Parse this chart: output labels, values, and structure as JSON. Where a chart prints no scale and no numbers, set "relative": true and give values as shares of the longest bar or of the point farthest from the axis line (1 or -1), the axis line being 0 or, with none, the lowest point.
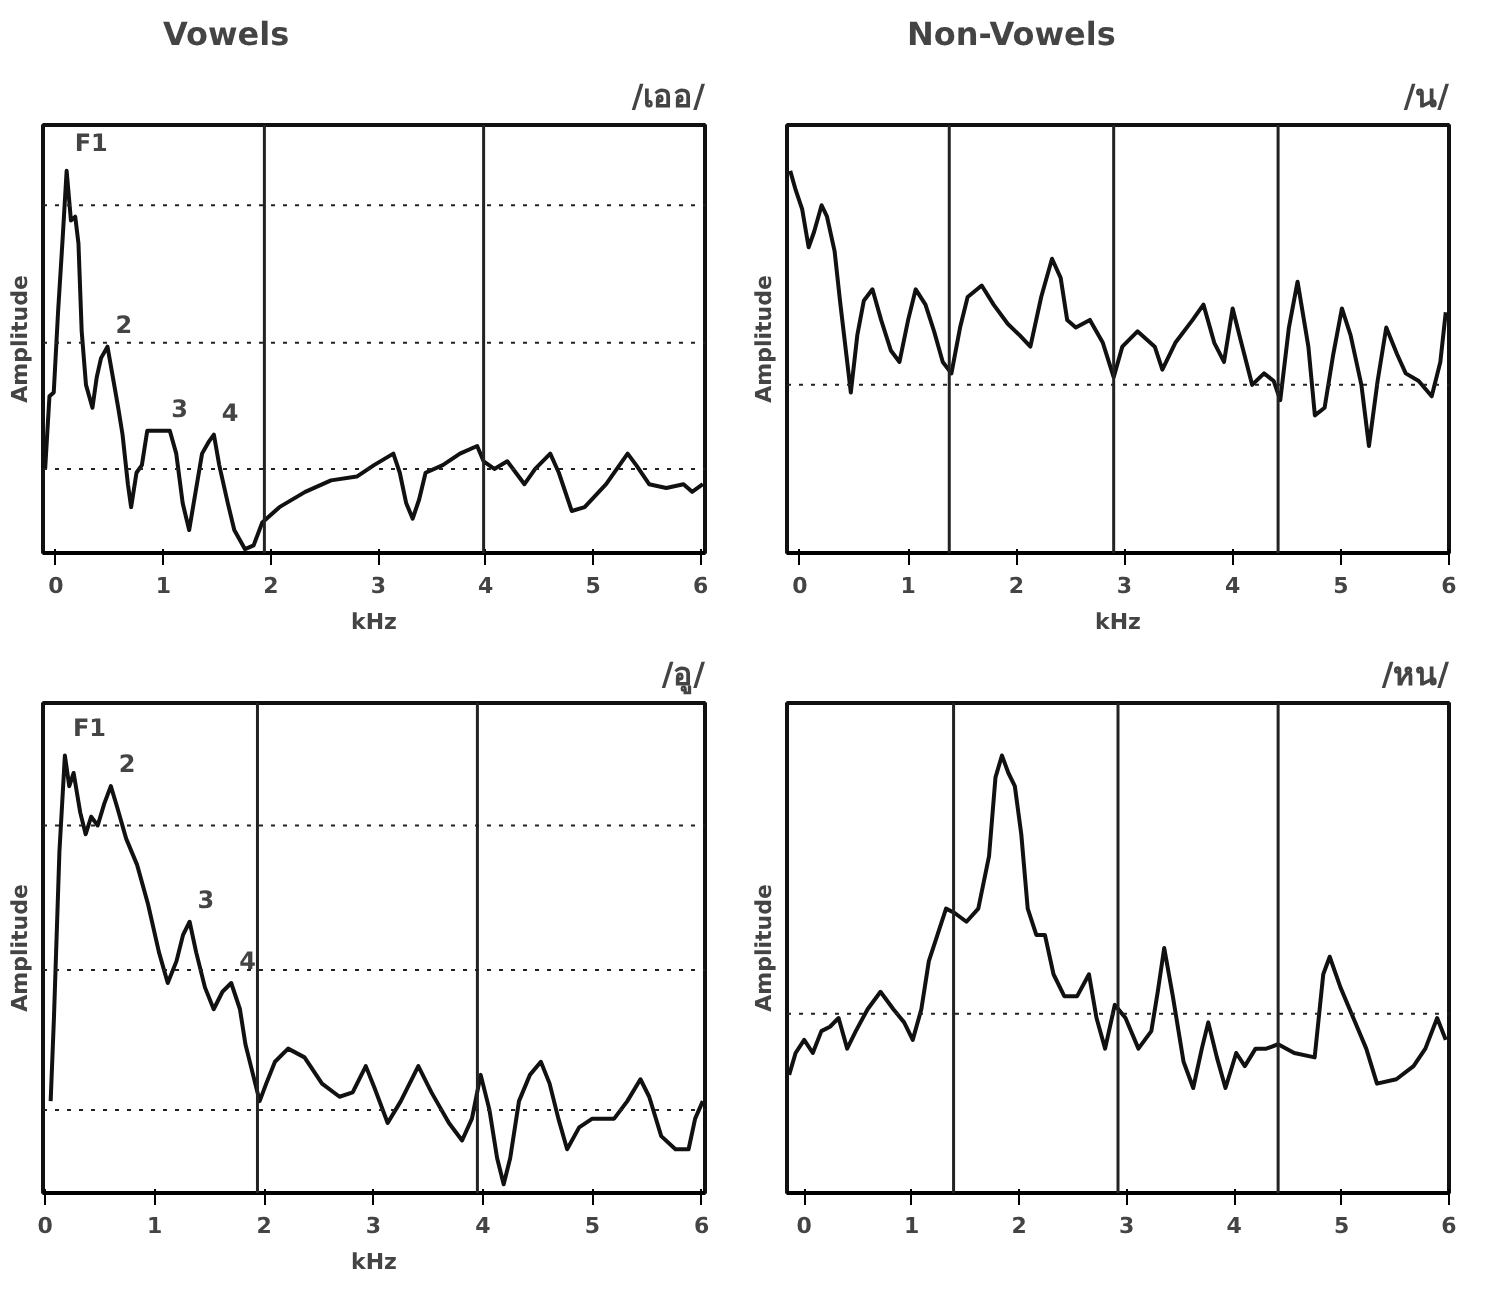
{
  "chart_data": [
    {
      "type": "line",
      "title": "/เออ/",
      "subtitle": "Vowels",
      "xlabel": "kHz",
      "ylabel": "Amplitude",
      "relative": true,
      "grid": false,
      "tick_labels": "x",
      "line_style": "solid",
      "color": "#111111",
      "xlim": [
        -0.12,
        6.04
      ],
      "xticks": [
        0,
        1,
        2,
        3,
        4,
        5,
        6
      ],
      "x": [
        -0.1,
        -0.06,
        -0.02,
        0.02,
        0.06,
        0.1,
        0.14,
        0.18,
        0.21,
        0.24,
        0.28,
        0.34,
        0.38,
        0.42,
        0.48,
        0.53,
        0.58,
        0.62,
        0.67,
        0.7,
        0.75,
        0.8,
        0.85,
        0.94,
        1.06,
        1.12,
        1.18,
        1.24,
        1.3,
        1.36,
        1.42,
        1.47,
        1.52,
        1.6,
        1.66,
        1.76,
        1.84,
        1.92,
        2.08,
        2.32,
        2.56,
        2.8,
        2.96,
        3.14,
        3.2,
        3.26,
        3.32,
        3.38,
        3.44,
        3.6,
        3.76,
        3.92,
        3.98,
        4.08,
        4.2,
        4.28,
        4.36,
        4.46,
        4.6,
        4.68,
        4.8,
        4.92,
        5.12,
        5.32,
        5.4,
        5.52,
        5.68,
        5.84,
        5.92,
        6.02
      ],
      "values": [
        0.22,
        0.41,
        0.42,
        0.63,
        0.81,
        1.0,
        0.87,
        0.88,
        0.81,
        0.58,
        0.44,
        0.38,
        0.46,
        0.51,
        0.54,
        0.46,
        0.38,
        0.31,
        0.18,
        0.12,
        0.21,
        0.23,
        0.32,
        0.32,
        0.32,
        0.26,
        0.13,
        0.06,
        0.16,
        0.26,
        0.29,
        0.31,
        0.23,
        0.13,
        0.06,
        0.01,
        0.02,
        0.08,
        0.12,
        0.16,
        0.19,
        0.2,
        0.23,
        0.26,
        0.21,
        0.13,
        0.09,
        0.14,
        0.21,
        0.23,
        0.26,
        0.28,
        0.24,
        0.22,
        0.24,
        0.21,
        0.18,
        0.22,
        0.26,
        0.21,
        0.11,
        0.12,
        0.18,
        0.26,
        0.23,
        0.18,
        0.17,
        0.18,
        0.16,
        0.18
      ],
      "annotations": [
        {
          "text": "F1",
          "x": 0.1,
          "y": 1.0
        },
        {
          "text": "2",
          "x": 0.48,
          "y": 0.54
        },
        {
          "text": "3",
          "x": 1.0,
          "y": 0.32
        },
        {
          "text": "4",
          "x": 1.47,
          "y": 0.31
        }
      ],
      "ref_lines": [
        {
          "axis": "x",
          "value": 1.94,
          "line_style": "solid"
        },
        {
          "axis": "x",
          "value": 3.98,
          "line_style": "solid"
        },
        {
          "axis": "y",
          "value": 0.91,
          "line_style": "dotted"
        },
        {
          "axis": "y",
          "value": 0.55,
          "line_style": "dotted"
        },
        {
          "axis": "y",
          "value": 0.22,
          "line_style": "dotted"
        }
      ]
    },
    {
      "type": "line",
      "title": "/น/",
      "subtitle": "Non-Vowels",
      "xlabel": "kHz",
      "ylabel": "Amplitude",
      "relative": true,
      "grid": false,
      "tick_labels": "x",
      "line_style": "solid",
      "color": "#111111",
      "xlim": [
        -0.12,
        6.0
      ],
      "xticks": [
        0,
        1,
        2,
        3,
        4,
        5,
        6
      ],
      "x": [
        -0.09,
        -0.04,
        0.02,
        0.08,
        0.13,
        0.2,
        0.25,
        0.32,
        0.37,
        0.42,
        0.47,
        0.53,
        0.59,
        0.67,
        0.75,
        0.84,
        0.92,
        1.0,
        1.07,
        1.16,
        1.24,
        1.32,
        1.4,
        1.48,
        1.55,
        1.68,
        1.79,
        1.92,
        2.03,
        2.13,
        2.23,
        2.33,
        2.41,
        2.47,
        2.55,
        2.68,
        2.8,
        2.9,
        2.98,
        3.12,
        3.28,
        3.35,
        3.47,
        3.63,
        3.73,
        3.83,
        3.92,
        4.0,
        4.08,
        4.18,
        4.29,
        4.38,
        4.44,
        4.52,
        4.6,
        4.7,
        4.76,
        4.85,
        4.93,
        5.01,
        5.09,
        5.19,
        5.26,
        5.34,
        5.42,
        5.52,
        5.6,
        5.72,
        5.84,
        5.92,
        5.97
      ],
      "values": [
        1.0,
        0.95,
        0.9,
        0.8,
        0.84,
        0.91,
        0.88,
        0.79,
        0.66,
        0.54,
        0.42,
        0.57,
        0.66,
        0.69,
        0.61,
        0.53,
        0.5,
        0.61,
        0.69,
        0.65,
        0.58,
        0.5,
        0.47,
        0.59,
        0.67,
        0.7,
        0.65,
        0.6,
        0.57,
        0.54,
        0.67,
        0.77,
        0.72,
        0.61,
        0.59,
        0.61,
        0.55,
        0.46,
        0.54,
        0.58,
        0.54,
        0.48,
        0.55,
        0.61,
        0.65,
        0.55,
        0.5,
        0.64,
        0.55,
        0.44,
        0.47,
        0.45,
        0.4,
        0.59,
        0.71,
        0.54,
        0.36,
        0.38,
        0.52,
        0.64,
        0.57,
        0.44,
        0.28,
        0.45,
        0.59,
        0.52,
        0.47,
        0.45,
        0.41,
        0.5,
        0.63
      ],
      "ref_lines": [
        {
          "axis": "x",
          "value": 1.38,
          "line_style": "solid"
        },
        {
          "axis": "x",
          "value": 2.9,
          "line_style": "solid"
        },
        {
          "axis": "x",
          "value": 4.42,
          "line_style": "solid"
        },
        {
          "axis": "y",
          "value": 0.44,
          "line_style": "dotted"
        }
      ]
    },
    {
      "type": "line",
      "title": "/อู/",
      "xlabel": "kHz",
      "ylabel": "Amplitude",
      "relative": true,
      "grid": false,
      "tick_labels": "x",
      "line_style": "solid",
      "color": "#111111",
      "xlim": [
        -0.02,
        6.03
      ],
      "xticks": [
        0,
        1,
        2,
        3,
        4,
        5,
        6
      ],
      "x": [
        0.05,
        0.08,
        0.13,
        0.18,
        0.22,
        0.26,
        0.32,
        0.37,
        0.42,
        0.48,
        0.54,
        0.6,
        0.66,
        0.74,
        0.84,
        0.94,
        1.04,
        1.12,
        1.2,
        1.26,
        1.32,
        1.38,
        1.46,
        1.54,
        1.62,
        1.7,
        1.78,
        1.83,
        1.9,
        1.96,
        2.02,
        2.1,
        2.22,
        2.37,
        2.53,
        2.69,
        2.81,
        2.93,
        3.01,
        3.13,
        3.25,
        3.41,
        3.53,
        3.69,
        3.81,
        3.9,
        3.98,
        4.06,
        4.13,
        4.19,
        4.25,
        4.33,
        4.43,
        4.53,
        4.61,
        4.69,
        4.77,
        4.88,
        5.0,
        5.2,
        5.32,
        5.44,
        5.52,
        5.63,
        5.76,
        5.88,
        5.94,
        6.01
      ],
      "values": [
        0.21,
        0.4,
        0.78,
        1.0,
        0.93,
        0.96,
        0.87,
        0.82,
        0.86,
        0.84,
        0.89,
        0.93,
        0.88,
        0.81,
        0.75,
        0.66,
        0.55,
        0.48,
        0.53,
        0.59,
        0.62,
        0.55,
        0.47,
        0.42,
        0.46,
        0.48,
        0.42,
        0.34,
        0.27,
        0.21,
        0.25,
        0.3,
        0.33,
        0.31,
        0.25,
        0.22,
        0.23,
        0.29,
        0.24,
        0.16,
        0.21,
        0.29,
        0.23,
        0.16,
        0.12,
        0.17,
        0.27,
        0.19,
        0.08,
        0.02,
        0.08,
        0.21,
        0.27,
        0.3,
        0.25,
        0.17,
        0.1,
        0.15,
        0.17,
        0.17,
        0.21,
        0.26,
        0.22,
        0.13,
        0.1,
        0.1,
        0.17,
        0.21
      ],
      "annotations": [
        {
          "text": "F1",
          "x": 0.18,
          "y": 1.0
        },
        {
          "text": "2",
          "x": 0.6,
          "y": 0.93
        },
        {
          "text": "3",
          "x": 1.32,
          "y": 0.62
        },
        {
          "text": "4",
          "x": 1.7,
          "y": 0.48
        }
      ],
      "ref_lines": [
        {
          "axis": "x",
          "value": 1.94,
          "line_style": "solid"
        },
        {
          "axis": "x",
          "value": 3.95,
          "line_style": "solid"
        },
        {
          "axis": "y",
          "value": 0.84,
          "line_style": "dotted"
        },
        {
          "axis": "y",
          "value": 0.51,
          "line_style": "dotted"
        },
        {
          "axis": "y",
          "value": 0.19,
          "line_style": "dotted"
        }
      ]
    },
    {
      "type": "line",
      "title": "/หน/",
      "ylabel": "Amplitude",
      "relative": true,
      "grid": false,
      "tick_labels": "x",
      "line_style": "solid",
      "color": "#111111",
      "xlim": [
        -0.16,
        6.0
      ],
      "xticks": [
        0,
        1,
        2,
        3,
        4,
        5,
        6
      ],
      "x": [
        -0.14,
        -0.08,
        0.0,
        0.08,
        0.16,
        0.24,
        0.32,
        0.4,
        0.48,
        0.59,
        0.71,
        0.83,
        0.93,
        1.01,
        1.09,
        1.16,
        1.24,
        1.32,
        1.4,
        1.51,
        1.62,
        1.72,
        1.78,
        1.84,
        1.9,
        1.96,
        2.02,
        2.08,
        2.16,
        2.24,
        2.32,
        2.42,
        2.54,
        2.65,
        2.72,
        2.8,
        2.89,
        2.99,
        3.11,
        3.23,
        3.29,
        3.35,
        3.43,
        3.53,
        3.62,
        3.7,
        3.76,
        3.84,
        3.92,
        4.02,
        4.1,
        4.2,
        4.3,
        4.41,
        4.56,
        4.75,
        4.83,
        4.89,
        4.99,
        5.11,
        5.23,
        5.33,
        5.51,
        5.67,
        5.78,
        5.89,
        5.97
      ],
      "values": [
        0.27,
        0.32,
        0.35,
        0.32,
        0.37,
        0.38,
        0.4,
        0.33,
        0.37,
        0.42,
        0.46,
        0.42,
        0.39,
        0.35,
        0.42,
        0.53,
        0.59,
        0.65,
        0.64,
        0.62,
        0.65,
        0.77,
        0.95,
        1.0,
        0.96,
        0.93,
        0.82,
        0.65,
        0.59,
        0.59,
        0.5,
        0.45,
        0.45,
        0.5,
        0.4,
        0.33,
        0.43,
        0.4,
        0.33,
        0.37,
        0.46,
        0.56,
        0.45,
        0.3,
        0.24,
        0.33,
        0.39,
        0.31,
        0.24,
        0.32,
        0.29,
        0.33,
        0.33,
        0.34,
        0.32,
        0.31,
        0.5,
        0.54,
        0.47,
        0.4,
        0.33,
        0.25,
        0.26,
        0.29,
        0.33,
        0.4,
        0.35
      ],
      "ref_lines": [
        {
          "axis": "x",
          "value": 1.39,
          "line_style": "solid"
        },
        {
          "axis": "x",
          "value": 2.92,
          "line_style": "solid"
        },
        {
          "axis": "x",
          "value": 4.41,
          "line_style": "solid"
        },
        {
          "axis": "y",
          "value": 0.41,
          "line_style": "dotted"
        }
      ]
    }
  ]
}
